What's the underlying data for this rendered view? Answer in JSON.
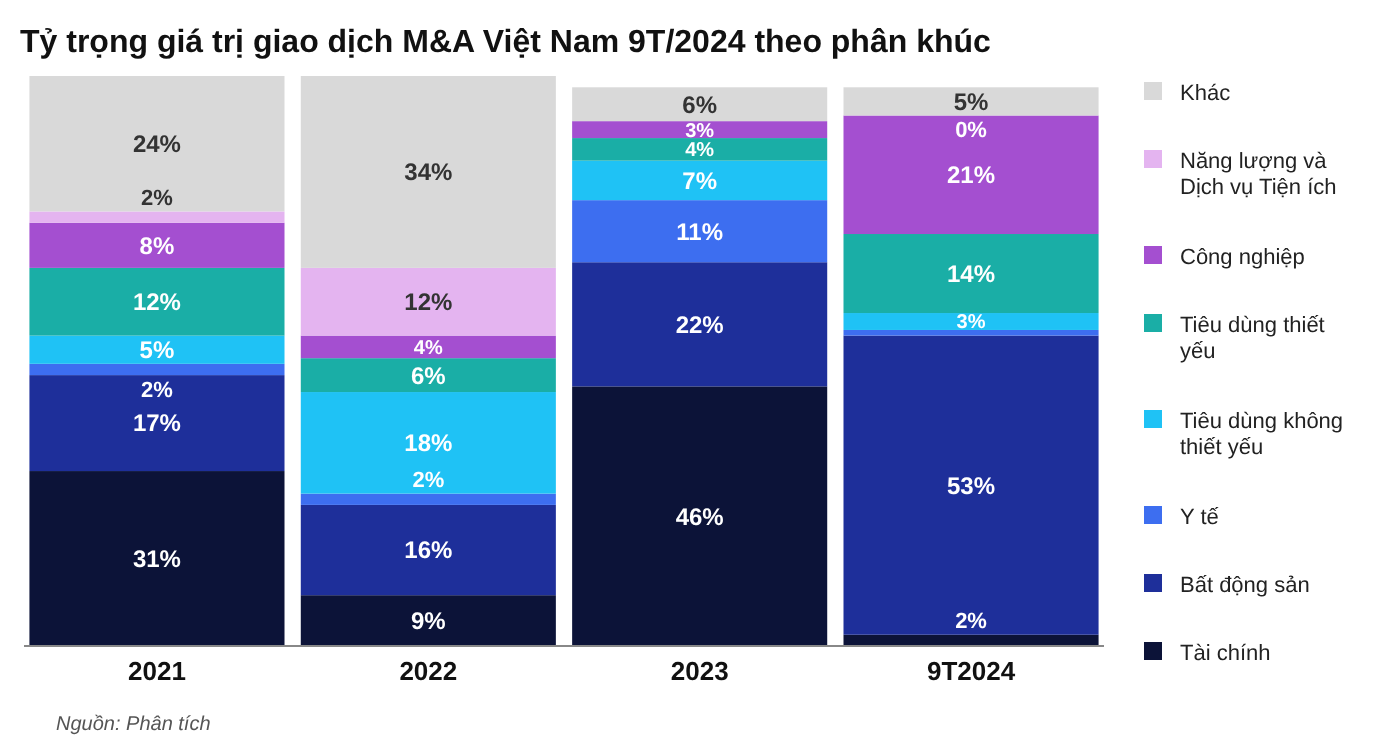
{
  "chart_data": {
    "type": "bar",
    "stacked": true,
    "title": "Tỷ trọng giá trị giao dịch M&A Việt Nam 9T/2024 theo phân khúc",
    "categories": [
      "2021",
      "2022",
      "2023",
      "9T2024"
    ],
    "legend": "right",
    "series": [
      {
        "name": "Tài chính",
        "color": "#0c1338",
        "values": [
          31,
          9,
          46,
          2
        ],
        "value_labels": [
          "31%",
          "9%",
          "46%",
          "2%"
        ]
      },
      {
        "name": "Bất động sản",
        "color": "#1e2f9a",
        "values": [
          17,
          16,
          22,
          53
        ],
        "value_labels": [
          "17%",
          "16%",
          "22%",
          "53%"
        ]
      },
      {
        "name": "Y tế",
        "color": "#3d6ef0",
        "values": [
          2,
          2,
          11,
          1
        ],
        "value_labels": [
          "2%",
          "2%",
          "11%",
          null
        ]
      },
      {
        "name": "Tiêu dùng không thiết yếu",
        "color": "#1fc2f5",
        "values": [
          5,
          18,
          7,
          3
        ],
        "value_labels": [
          "5%",
          "18%",
          "7%",
          "3%"
        ]
      },
      {
        "name": "Tiêu dùng thiết yếu",
        "color": "#1aaea6",
        "values": [
          12,
          6,
          4,
          14
        ],
        "value_labels": [
          "12%",
          "6%",
          "4%",
          "14%"
        ]
      },
      {
        "name": "Công nghiệp",
        "color": "#a44fd0",
        "values": [
          8,
          4,
          3,
          21
        ],
        "value_labels": [
          "8%",
          "4%",
          "3%",
          "21%"
        ]
      },
      {
        "name": "Năng lượng và Dịch vụ Tiện ích",
        "color": "#e4b4f0",
        "values": [
          2,
          12,
          null,
          0
        ],
        "value_labels": [
          "2%",
          "12%",
          null,
          "0%"
        ]
      },
      {
        "name": "Khác",
        "color": "#d9d9d9",
        "values": [
          24,
          34,
          6,
          5
        ],
        "value_labels": [
          "24%",
          "34%",
          "6%",
          "5%"
        ]
      }
    ],
    "annotations": [
      "Nguồn: Phân tích"
    ]
  }
}
